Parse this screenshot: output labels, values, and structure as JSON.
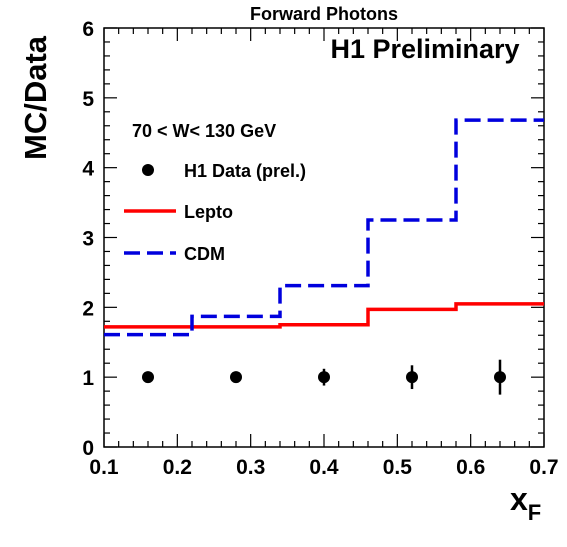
{
  "chart_data": {
    "type": "line",
    "title": "Forward Photons",
    "banner": "H1 Preliminary",
    "condition": "70 < W< 130 GeV",
    "xlabel": "x",
    "xlabel_sub": "F",
    "ylabel": "MC/Data",
    "xlim": [
      0.1,
      0.7
    ],
    "ylim": [
      0,
      6
    ],
    "xticks": [
      "0.1",
      "0.2",
      "0.3",
      "0.4",
      "0.5",
      "0.6",
      "0.7"
    ],
    "yticks": [
      "0",
      "1",
      "2",
      "3",
      "4",
      "5",
      "6"
    ],
    "bin_edges": [
      0.1,
      0.22,
      0.34,
      0.46,
      0.58,
      0.7
    ],
    "legend_position": "upper-left",
    "series": [
      {
        "name": "H1 Data (prel.)",
        "kind": "points",
        "color": "#000000",
        "x": [
          0.16,
          0.28,
          0.4,
          0.52,
          0.64
        ],
        "y": [
          1.0,
          1.0,
          1.0,
          1.0,
          1.0
        ],
        "yerr": [
          0.05,
          0.08,
          0.12,
          0.17,
          0.25
        ]
      },
      {
        "name": "Lepto",
        "kind": "step",
        "color": "#ff0000",
        "dash": "solid",
        "values": [
          1.72,
          1.72,
          1.75,
          1.97,
          2.05
        ]
      },
      {
        "name": "CDM",
        "kind": "step",
        "color": "#0000dd",
        "dash": "dashed",
        "values": [
          1.61,
          1.87,
          2.31,
          3.25,
          4.68
        ]
      }
    ]
  }
}
